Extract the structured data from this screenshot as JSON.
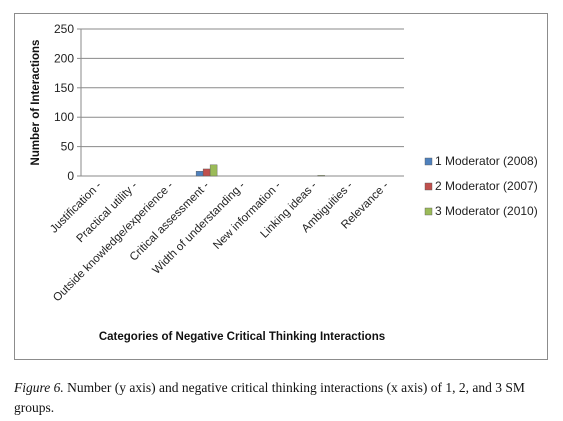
{
  "chart_data": {
    "type": "bar",
    "title": "",
    "xlabel": "Categories of Negative Critical Thinking Interactions",
    "ylabel": "Number of Interactions",
    "ylim": [
      0,
      250
    ],
    "yticks": [
      "0",
      "50",
      "100",
      "150",
      "200",
      "250"
    ],
    "grid": true,
    "legend_position": "right",
    "categories": [
      "Justification -",
      "Practical utility -",
      "Outside knowledge/experience -",
      "Critical assessment -",
      "Width of understanding -",
      "New information -",
      "Linking ideas -",
      "Ambiguities -",
      "Relevance -"
    ],
    "series": [
      {
        "name": "1 Moderator (2008)",
        "color": "#4F81BD",
        "values": [
          0,
          0,
          0,
          8,
          0,
          0,
          0,
          0,
          0
        ]
      },
      {
        "name": "2 Moderator (2007)",
        "color": "#C0504D",
        "values": [
          0,
          0,
          0,
          12,
          0,
          0,
          0,
          0,
          0
        ]
      },
      {
        "name": "3 Moderator (2010)",
        "color": "#9BBB59",
        "values": [
          0,
          0,
          0,
          19,
          0,
          0,
          1,
          0,
          0
        ]
      }
    ]
  },
  "caption": {
    "figure_label": "Figure 6.",
    "text": "Number (y axis) and negative critical thinking interactions (x axis) of 1, 2, and 3 SM groups."
  }
}
